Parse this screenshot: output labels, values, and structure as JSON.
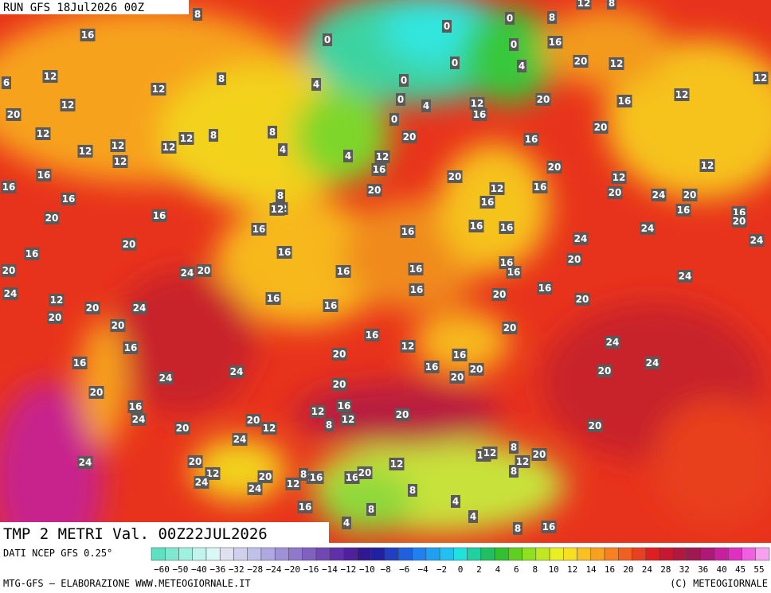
{
  "header": {
    "run": "RUN GFS 18Jul2026 00Z"
  },
  "map": {
    "labels": [
      8,
      12,
      8,
      16,
      0,
      0,
      0,
      8,
      16,
      0,
      0,
      4,
      20,
      12,
      12,
      6,
      12,
      12,
      8,
      4,
      0,
      0,
      4,
      12,
      16,
      20,
      16,
      12,
      12,
      20,
      0,
      20,
      12,
      8,
      12,
      8,
      20,
      16,
      4,
      12,
      12,
      12,
      4,
      12,
      12,
      16,
      20,
      12,
      16,
      20,
      12,
      16,
      12,
      16,
      20,
      12,
      16,
      20,
      24,
      20,
      16,
      8,
      16,
      12,
      16,
      16,
      20,
      20,
      16,
      16,
      16,
      16,
      16,
      16,
      24,
      24,
      24,
      20,
      16,
      16,
      16,
      20,
      20,
      24,
      20,
      16,
      16,
      16,
      24,
      24,
      12,
      16,
      16,
      16,
      20,
      20,
      20,
      24,
      16,
      20,
      20,
      20,
      16,
      16,
      12,
      24,
      20,
      16,
      16,
      24,
      16,
      20,
      20,
      20,
      24,
      24,
      20,
      20,
      16,
      16,
      12,
      20,
      24,
      12,
      20,
      12,
      8,
      20,
      20,
      24,
      8,
      16,
      12,
      20,
      12,
      24,
      20,
      12,
      12,
      8,
      24,
      20,
      8,
      12,
      16,
      20,
      24,
      8,
      4,
      16,
      8,
      4,
      4,
      8,
      16
    ]
  },
  "footer": {
    "title": "TMP 2 METRI Val. 00Z22JUL2026",
    "source": "DATI NCEP GFS 0.25°",
    "credit": "MTG-GFS – ELABORAZIONE WWW.METEOGIORNALE.IT",
    "copyright": "(C) METEOGIORNALE",
    "scale": [
      "−60",
      "−50",
      "−40",
      "−36",
      "−32",
      "−28",
      "−24",
      "−20",
      "−16",
      "−14",
      "−12",
      "−10",
      "−8",
      "−6",
      "−4",
      "−2",
      "0",
      "2",
      "4",
      "6",
      "8",
      "10",
      "12",
      "14",
      "16",
      "20",
      "24",
      "28",
      "32",
      "36",
      "40",
      "45",
      "55"
    ]
  }
}
